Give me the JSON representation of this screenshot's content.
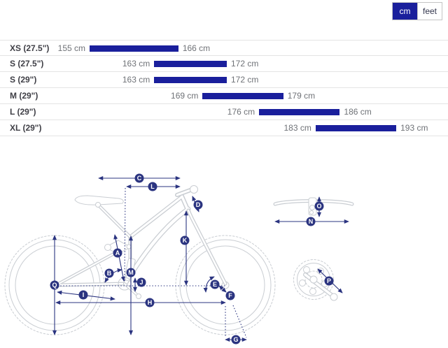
{
  "unit_toggle": {
    "cm_label": "cm",
    "feet_label": "feet",
    "selected": "cm"
  },
  "chart_data": {
    "type": "bar",
    "unit": "cm",
    "xlim": [
      155,
      193
    ],
    "categories": [
      "XS (27.5\")",
      "S (27.5\")",
      "S (29\")",
      "M (29\")",
      "L (29\")",
      "XL (29\")"
    ],
    "rows": [
      {
        "size": "XS (27.5\")",
        "min": 155,
        "max": 166
      },
      {
        "size": "S (27.5\")",
        "min": 163,
        "max": 172
      },
      {
        "size": "S (29\")",
        "min": 163,
        "max": 172
      },
      {
        "size": "M (29\")",
        "min": 169,
        "max": 179
      },
      {
        "size": "L (29\")",
        "min": 176,
        "max": 186
      },
      {
        "size": "XL (29\")",
        "min": 183,
        "max": 193
      }
    ]
  },
  "diagram": {
    "markers": [
      "A",
      "B",
      "C",
      "D",
      "E",
      "F",
      "G",
      "H",
      "I",
      "J",
      "K",
      "L",
      "M",
      "N",
      "O",
      "P",
      "Q"
    ]
  },
  "colors": {
    "brand-blue": "#1a1f9c",
    "bar-blue": "#1a1f9c",
    "dim-navy": "#2b3480",
    "art-gray": "#c9cdd2",
    "row-border": "#e4e4e4",
    "size-label": "#3f3f46",
    "value-label": "#6f7277"
  }
}
